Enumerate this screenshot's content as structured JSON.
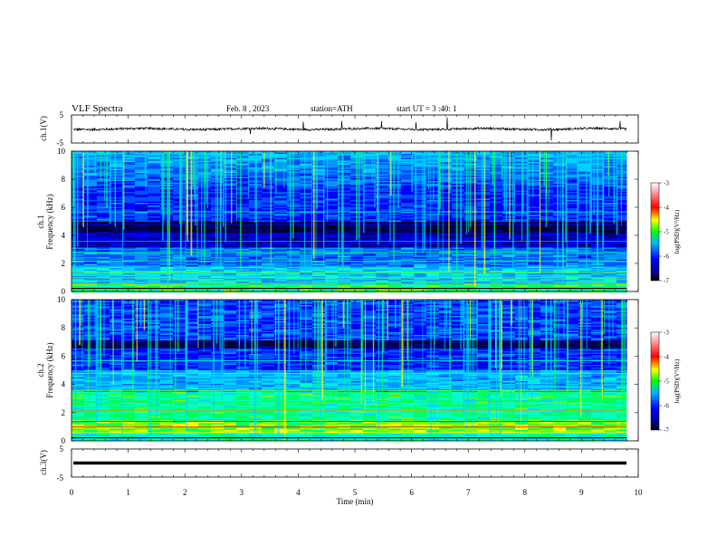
{
  "header": {
    "title": "VLF Spectra",
    "date": "Feb. 8 , 2023",
    "station": "station=ATH",
    "start": "start UT = 3 :40: 1"
  },
  "colors": {
    "background": "#ffffff",
    "trace": "#000000",
    "cbar_stops": [
      "#000000",
      "#0000ff",
      "#00b4ff",
      "#00ff00",
      "#ffff00",
      "#ff0000",
      "#ffffff"
    ]
  },
  "chart_data": [
    {
      "type": "line",
      "panel": "ch1",
      "ylabel": "ch.1(V)",
      "ylim": [
        -5,
        5
      ],
      "yticks": [
        "5",
        "-5"
      ],
      "xlim": [
        0,
        10
      ],
      "baseline": 0,
      "noise_amplitude": 0.5,
      "data_end": 9.8
    },
    {
      "type": "heatmap",
      "panel": "ch1-spectrogram",
      "ylabel": "ch.1 Frequency (kHz)",
      "ylabel_lines": [
        "ch.1",
        "Frequency (kHz)"
      ],
      "ylim": [
        0,
        10
      ],
      "yticks": [
        "0",
        "2",
        "4",
        "6",
        "8",
        "10"
      ],
      "xlim": [
        0,
        10
      ],
      "data_end": 9.8,
      "colorbar": {
        "label": "log(PSD)(V²/Hz)",
        "range": [
          -7,
          -3
        ],
        "ticks": [
          "-7",
          "-6",
          "-5",
          "-4",
          "-3"
        ]
      }
    },
    {
      "type": "heatmap",
      "panel": "ch2-spectrogram",
      "ylabel": "ch.2 Frequency (kHz)",
      "ylabel_lines": [
        "ch.2",
        "Frequency (kHz)"
      ],
      "ylim": [
        0,
        10
      ],
      "yticks": [
        "0",
        "2",
        "4",
        "6",
        "8",
        "10"
      ],
      "xlim": [
        0,
        10
      ],
      "data_end": 9.8,
      "colorbar": {
        "label": "log(PSD)(V²/Hz)",
        "range": [
          -7,
          -3
        ],
        "ticks": [
          "-7",
          "-6",
          "-5",
          "-4",
          "-3"
        ]
      }
    },
    {
      "type": "line",
      "panel": "ch3",
      "ylabel": "ch.3(V)",
      "ylim": [
        -5,
        5
      ],
      "yticks": [
        "5",
        "-5"
      ],
      "xlim": [
        0,
        10
      ],
      "baseline": 0,
      "noise_amplitude": 0,
      "data_end": 9.8
    }
  ],
  "xaxis": {
    "label": "Time (min)",
    "ticks": [
      "0",
      "1",
      "2",
      "3",
      "4",
      "5",
      "6",
      "7",
      "8",
      "9",
      "10"
    ]
  }
}
